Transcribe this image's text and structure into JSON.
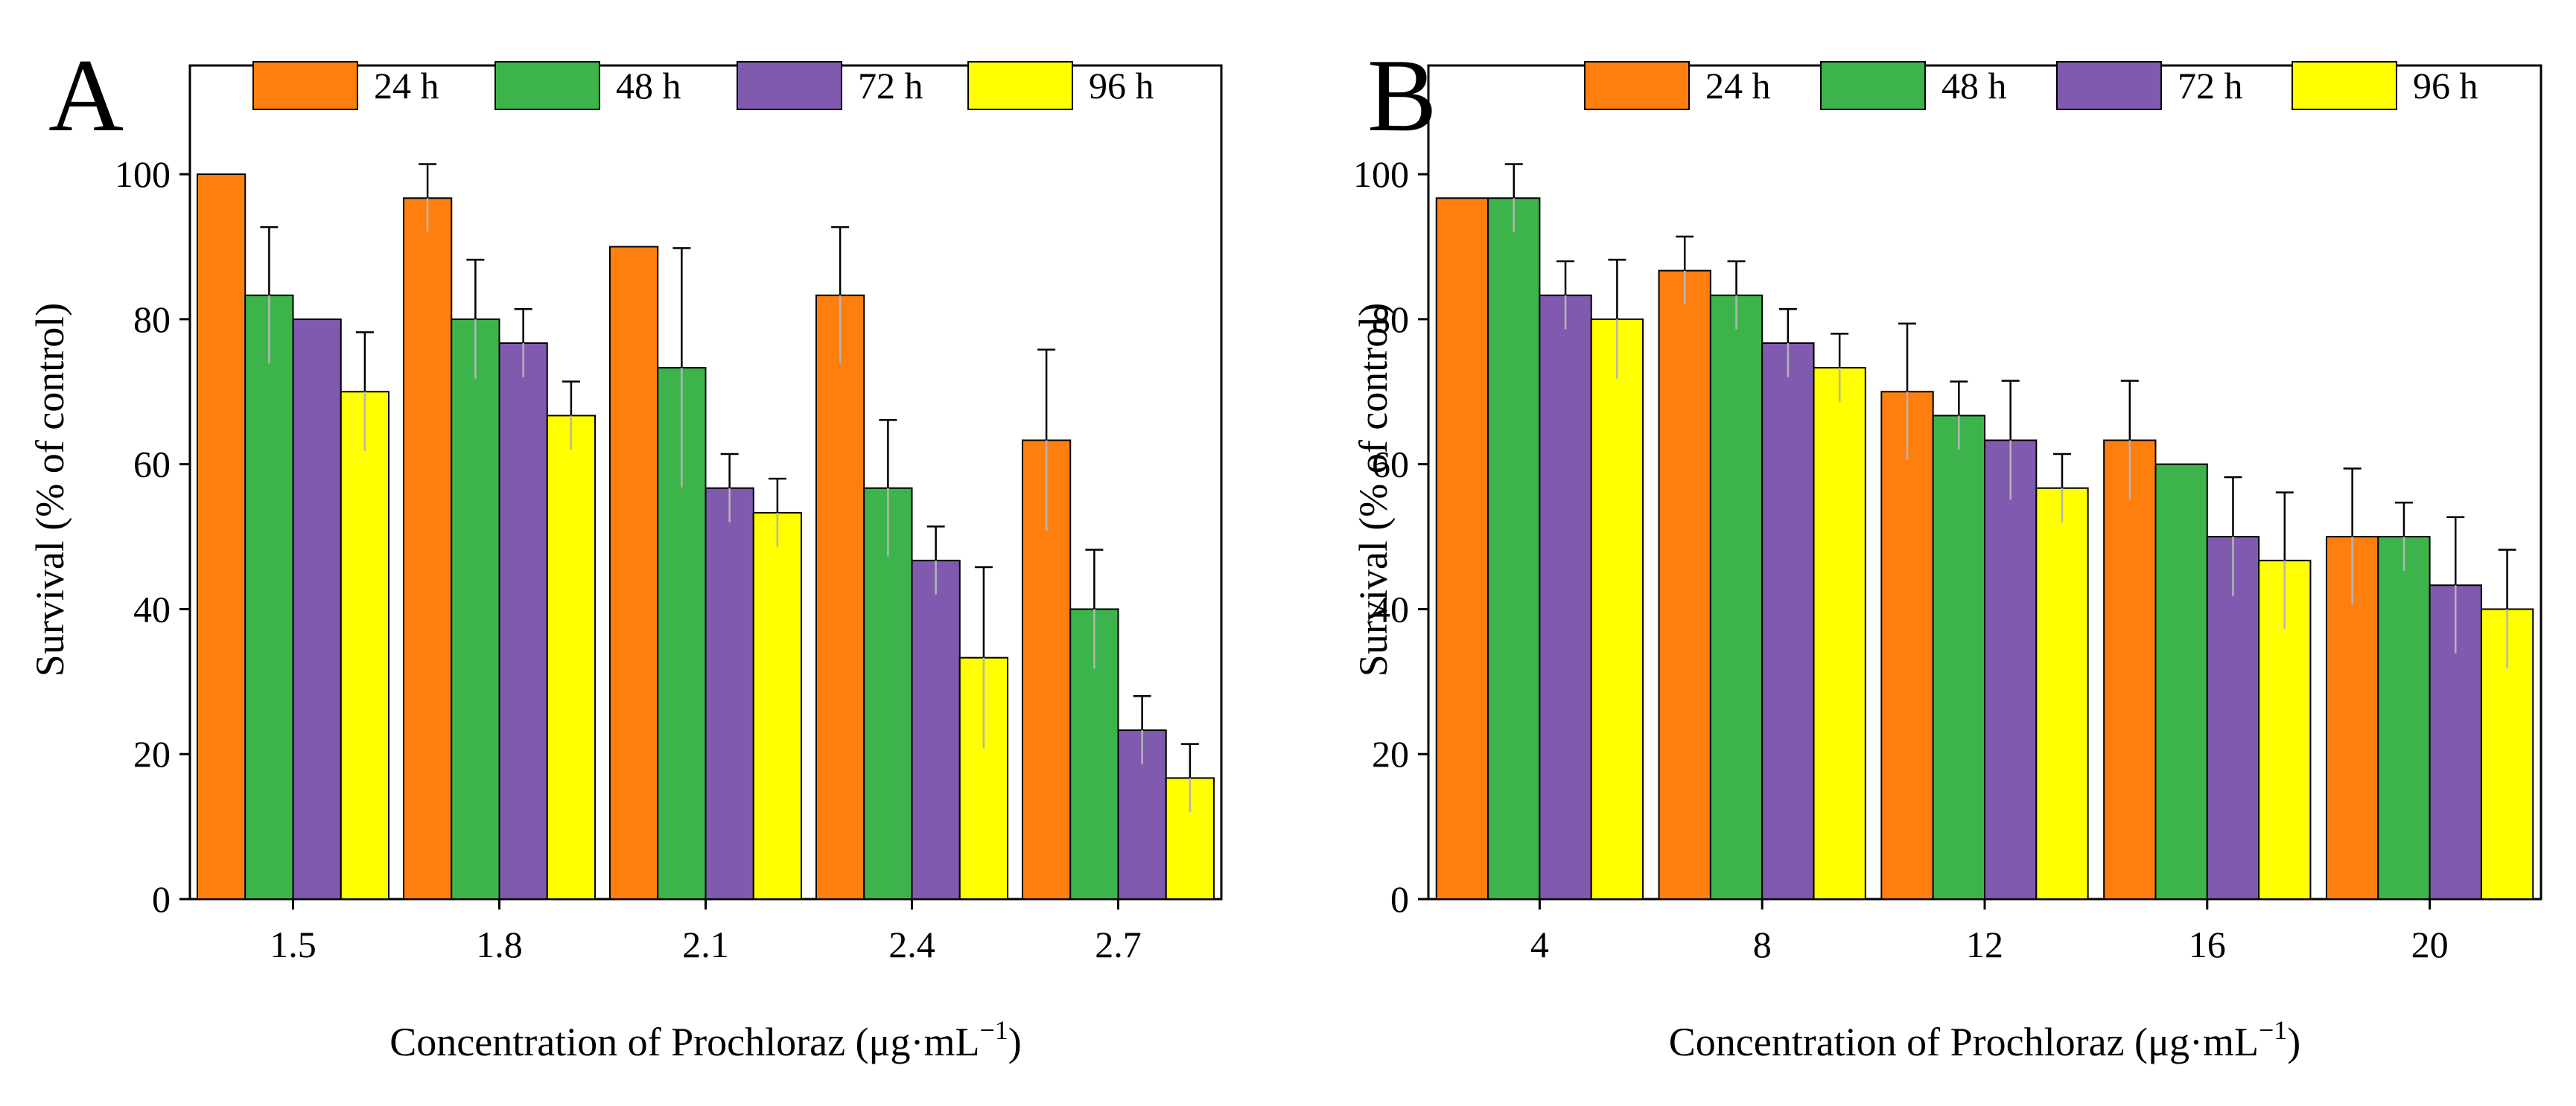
{
  "figure": {
    "x_axis_title_main": "Concentration of Prochloraz (μg·mL",
    "x_axis_title_sup": "−1",
    "x_axis_title_close": ")"
  },
  "colors": {
    "24 h": "#FF7F0E",
    "48 h": "#3CB44B",
    "72 h": "#7F5AAF",
    "96 h": "#FFFF00"
  },
  "chart_data": [
    {
      "panel": "A",
      "type": "bar",
      "ylabel": "Survival (% of control)",
      "xlabel": "Concentration of Prochloraz (μg·mL−1)",
      "ylim": [
        0,
        115
      ],
      "yticks": [
        0,
        20,
        40,
        60,
        80,
        100
      ],
      "legend_position": "top",
      "categories": [
        "1.5",
        "1.8",
        "2.1",
        "2.4",
        "2.7"
      ],
      "series": [
        {
          "name": "24 h",
          "values": [
            100,
            96.7,
            90,
            83.3,
            63.3
          ],
          "errors": [
            0,
            4.7,
            0,
            9.4,
            12.5
          ]
        },
        {
          "name": "48 h",
          "values": [
            83.3,
            80,
            73.3,
            56.7,
            40
          ],
          "errors": [
            9.4,
            8.2,
            16.5,
            9.4,
            8.2
          ]
        },
        {
          "name": "72 h",
          "values": [
            80,
            76.7,
            56.7,
            46.7,
            23.3
          ],
          "errors": [
            0,
            4.7,
            4.7,
            4.7,
            4.7
          ]
        },
        {
          "name": "96 h",
          "values": [
            70,
            66.7,
            53.3,
            33.3,
            16.7
          ],
          "errors": [
            8.2,
            4.7,
            4.7,
            12.5,
            4.7
          ]
        }
      ]
    },
    {
      "panel": "B",
      "type": "bar",
      "ylabel": "Survival (% of control)",
      "xlabel": "Concentration of Prochloraz (μg·mL−1)",
      "ylim": [
        0,
        115
      ],
      "yticks": [
        0,
        20,
        40,
        60,
        80,
        100
      ],
      "legend_position": "top",
      "categories": [
        "4",
        "8",
        "12",
        "16",
        "20"
      ],
      "series": [
        {
          "name": "24 h",
          "values": [
            96.7,
            86.7,
            70,
            63.3,
            50
          ],
          "errors": [
            0,
            4.7,
            9.4,
            8.2,
            9.4
          ]
        },
        {
          "name": "48 h",
          "values": [
            96.7,
            83.3,
            66.7,
            60,
            50
          ],
          "errors": [
            4.7,
            4.7,
            4.7,
            0,
            4.7
          ]
        },
        {
          "name": "72 h",
          "values": [
            83.3,
            76.7,
            63.3,
            50,
            43.3
          ],
          "errors": [
            4.7,
            4.7,
            8.2,
            8.2,
            9.4
          ]
        },
        {
          "name": "96 h",
          "values": [
            80,
            73.3,
            56.7,
            46.7,
            40
          ],
          "errors": [
            8.2,
            4.7,
            4.7,
            9.4,
            8.2
          ]
        }
      ]
    }
  ]
}
